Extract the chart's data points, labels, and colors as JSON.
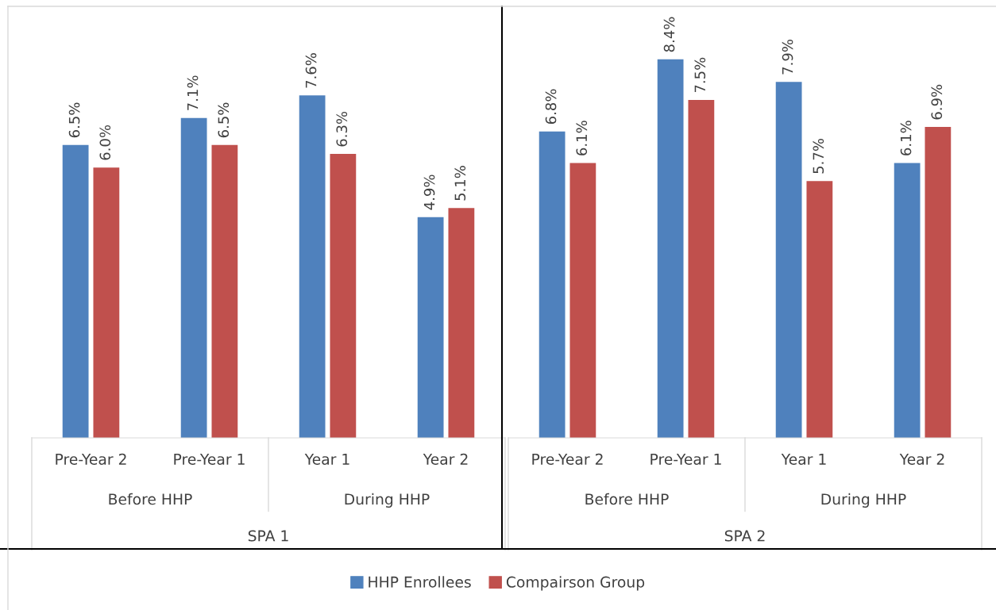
{
  "chart_data": [
    {
      "type": "bar",
      "categories": [
        "Pre-Year 2",
        "Pre-Year 1",
        "Year 1",
        "Year 2"
      ],
      "xlabel": "SPA 1",
      "annotations": [
        "Before HHP",
        "During HHP"
      ],
      "tick_labels": "x",
      "legend": "bottom",
      "grid": false,
      "series": [
        {
          "name": "HHP Enrollees",
          "color": "#4f81bd",
          "values": [
            6.5,
            7.1,
            7.6,
            4.9
          ],
          "value_labels": [
            "6.5%",
            "7.1%",
            "7.6%",
            "4.9%"
          ]
        },
        {
          "name": "Compairson Group",
          "color": "#c0504d",
          "values": [
            6.0,
            6.5,
            6.3,
            5.1
          ],
          "value_labels": [
            "6.0%",
            "6.5%",
            "6.3%",
            "5.1%"
          ]
        }
      ]
    },
    {
      "type": "bar",
      "categories": [
        "Pre-Year 2",
        "Pre-Year 1",
        "Year 1",
        "Year 2"
      ],
      "xlabel": "SPA 2",
      "annotations": [
        "Before HHP",
        "During HHP"
      ],
      "tick_labels": "x",
      "legend": "bottom",
      "grid": false,
      "series": [
        {
          "name": "HHP Enrollees",
          "color": "#4f81bd",
          "values": [
            6.8,
            8.4,
            7.9,
            6.1
          ],
          "value_labels": [
            "6.8%",
            "8.4%",
            "7.9%",
            "6.1%"
          ]
        },
        {
          "name": "Compairson Group",
          "color": "#c0504d",
          "values": [
            6.1,
            7.5,
            5.7,
            6.9
          ],
          "value_labels": [
            "6.1%",
            "7.5%",
            "5.7%",
            "6.9%"
          ]
        }
      ]
    }
  ]
}
